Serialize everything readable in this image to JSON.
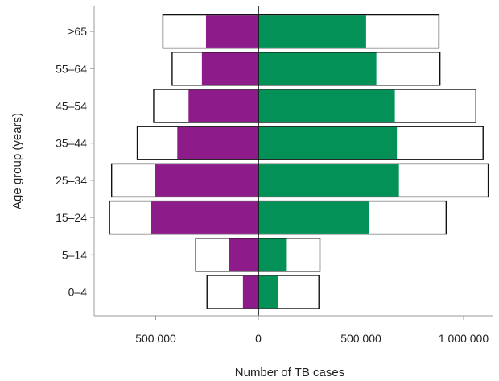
{
  "chart_data": {
    "type": "bar",
    "orientation": "horizontal-pyramid",
    "categories": [
      "0–4",
      "5–14",
      "15–24",
      "25–34",
      "35–44",
      "45–54",
      "55–64",
      "≥65"
    ],
    "series": [
      {
        "side": "left",
        "kind": "estimated",
        "values": [
          250000,
          305000,
          725000,
          715000,
          590000,
          510000,
          420000,
          465000
        ]
      },
      {
        "side": "left",
        "kind": "notified",
        "values": [
          75000,
          145000,
          525000,
          505000,
          395000,
          340000,
          275000,
          255000
        ]
      },
      {
        "side": "right",
        "kind": "estimated",
        "values": [
          295000,
          300000,
          915000,
          1120000,
          1095000,
          1060000,
          885000,
          880000
        ]
      },
      {
        "side": "right",
        "kind": "notified",
        "values": [
          95000,
          135000,
          540000,
          685000,
          675000,
          665000,
          575000,
          525000
        ]
      }
    ],
    "xlabel": "Number of TB cases",
    "ylabel": "Age group (years)",
    "xlim": [
      -800000,
      1150000
    ],
    "xticks": [
      -500000,
      0,
      500000,
      1000000
    ],
    "xtick_labels": [
      "500 000",
      "0",
      "500 000",
      "1 000 000"
    ],
    "colors": {
      "left": "#8e1b8a",
      "right": "#039157",
      "outline": "#111111",
      "axis": "#999999"
    },
    "grid": false,
    "legend": "none"
  }
}
